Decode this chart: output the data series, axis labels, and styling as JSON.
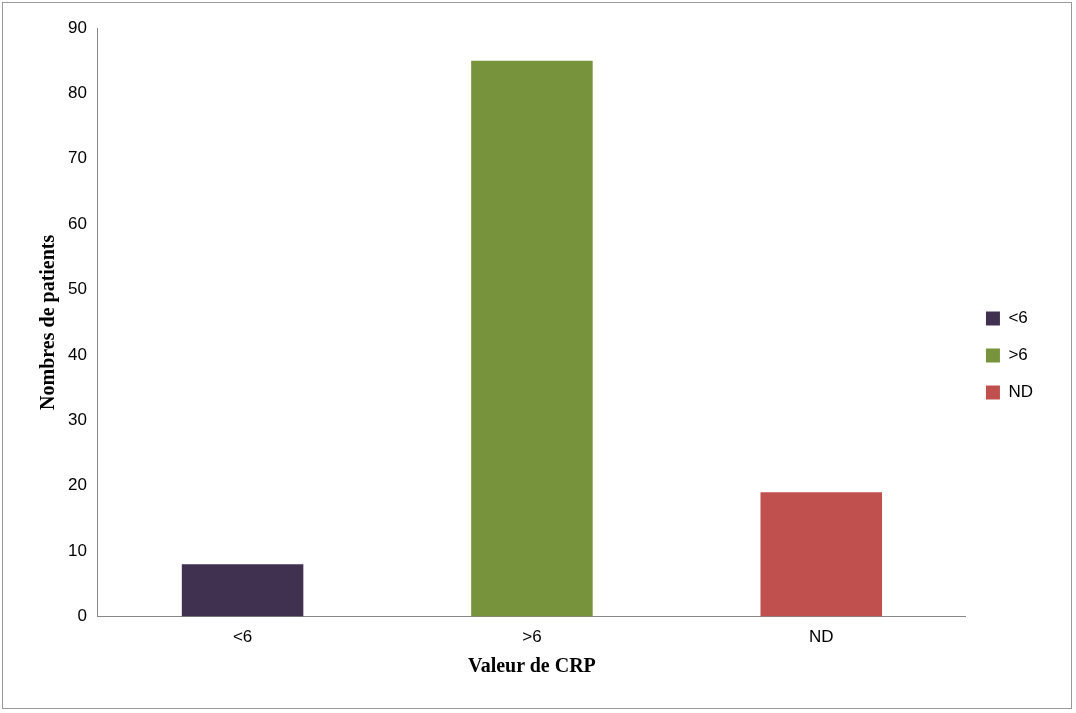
{
  "chart_data": {
    "type": "bar",
    "xlabel": "Valeur de CRP",
    "ylabel": "Nombres de patients",
    "categories": [
      "<6",
      ">6",
      "ND"
    ],
    "series": [
      {
        "name": "<6",
        "color": "#403151",
        "values": [
          8,
          null,
          null
        ]
      },
      {
        "name": ">6",
        "color": "#77933c",
        "values": [
          null,
          85,
          null
        ]
      },
      {
        "name": "ND",
        "color": "#c0504d",
        "values": [
          null,
          null,
          19
        ]
      }
    ],
    "ylim": [
      0,
      90
    ],
    "yticks": [
      0,
      10,
      20,
      30,
      40,
      50,
      60,
      70,
      80,
      90
    ],
    "grid": false,
    "legend": "right"
  }
}
